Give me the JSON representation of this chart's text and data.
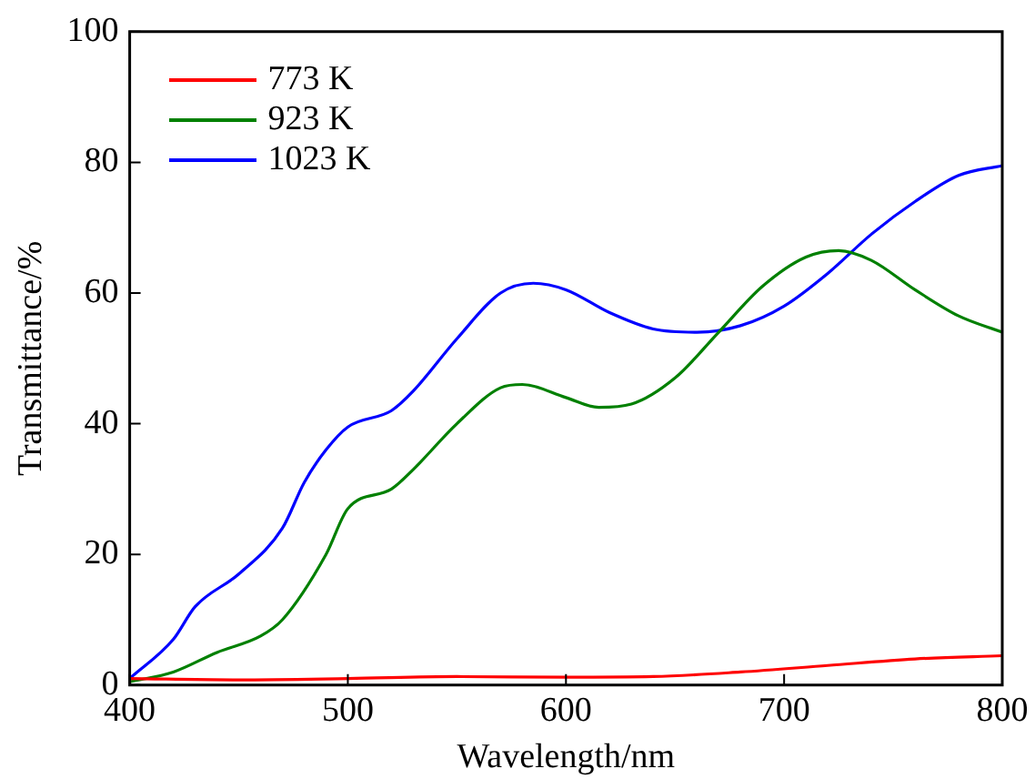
{
  "chart_data": {
    "type": "line",
    "xlabel": "Wavelength/nm",
    "ylabel": "Transmittance/%",
    "xlim": [
      400,
      800
    ],
    "xticks": [
      400,
      500,
      600,
      700,
      800
    ],
    "ylim": [
      0,
      100
    ],
    "yticks": [
      0,
      20,
      40,
      60,
      80,
      100
    ],
    "grid": false,
    "legend": "top left",
    "marker": "none",
    "line_style": "solid",
    "series": [
      {
        "name": "773 K",
        "color": "#ff0000",
        "x": [
          400,
          450,
          500,
          550,
          600,
          640,
          680,
          720,
          760,
          800
        ],
        "values": [
          1,
          0.8,
          1,
          1.3,
          1.2,
          1.3,
          2,
          3,
          4,
          4.5
        ]
      },
      {
        "name": "923 K",
        "color": "#008000",
        "x": [
          400,
          420,
          440,
          460,
          470,
          490,
          500,
          520,
          530,
          550,
          570,
          580,
          600,
          615,
          630,
          650,
          670,
          690,
          710,
          725,
          740,
          760,
          780,
          800
        ],
        "values": [
          0.5,
          2,
          5,
          7.5,
          10,
          20,
          27,
          30,
          33,
          40,
          45.5,
          46,
          44,
          42.5,
          43,
          47,
          54,
          61,
          65.5,
          66.5,
          65,
          60.5,
          56.5,
          54
        ]
      },
      {
        "name": "1023 K",
        "color": "#0000ff",
        "x": [
          400,
          420,
          430,
          450,
          470,
          480,
          490,
          500,
          520,
          530,
          550,
          570,
          585,
          600,
          620,
          640,
          660,
          680,
          700,
          720,
          740,
          760,
          780,
          800
        ],
        "values": [
          1,
          7,
          12,
          17,
          24,
          31,
          36,
          39.5,
          42,
          45,
          53,
          60,
          61.5,
          60.5,
          57,
          54.5,
          54,
          55,
          58,
          63,
          69,
          74,
          78,
          79.5
        ]
      }
    ]
  }
}
